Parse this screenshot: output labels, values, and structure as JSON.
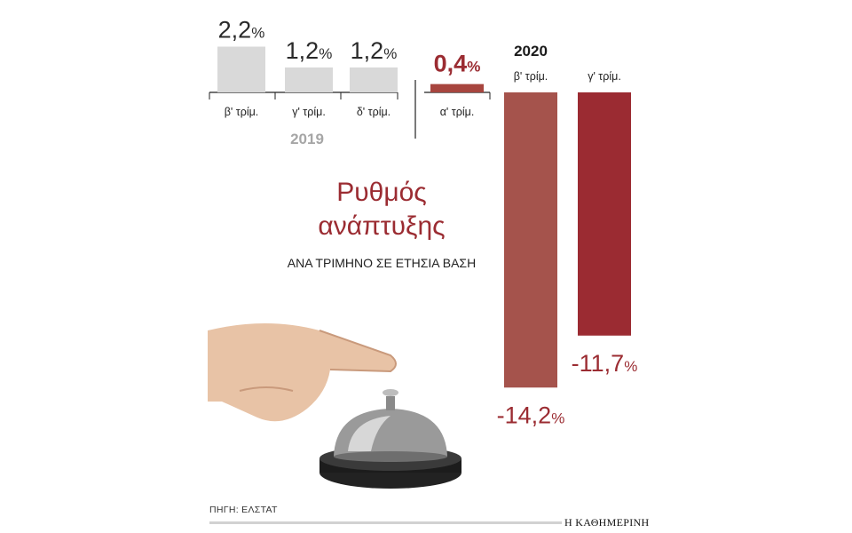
{
  "chart_data": {
    "type": "bar",
    "title": "Ρυθμός ανάπτυξης",
    "subtitle": "ΑΝΑ ΤΡΙΜΗΝΟ ΣΕ ΕΤΗΣΙΑ ΒΑΣΗ",
    "unit": "%",
    "groups": [
      {
        "year": "2019",
        "color": "#d9d9d9",
        "label_color": "#2a2a2a",
        "quarters": [
          {
            "label": "β' τρίμ.",
            "value": 2.2,
            "display": "2,2"
          },
          {
            "label": "γ' τρίμ.",
            "value": 1.2,
            "display": "1,2"
          },
          {
            "label": "δ' τρίμ.",
            "value": 1.2,
            "display": "1,2"
          }
        ]
      },
      {
        "year": "2020",
        "color": "#a7453e",
        "label_color": "#9b2c32",
        "quarters": [
          {
            "label": "α' τρίμ.",
            "value": 0.4,
            "display": "0,4",
            "color": "#a7453e"
          },
          {
            "label": "β' τρίμ.",
            "value": -14.2,
            "display": "-14,2",
            "color": "#a5534c"
          },
          {
            "label": "γ' τρίμ.",
            "value": -11.7,
            "display": "-11,7",
            "color": "#9b2b32"
          }
        ]
      }
    ],
    "ylim": [
      -14.2,
      2.2
    ]
  },
  "source": "ΠΗΓΗ: ΕΛΣΤΑΤ",
  "brand": "Η ΚΑΘΗΜΕΡΙΝΗ",
  "colors": {
    "title": "#9b2c32",
    "bar_2019": "#d9d9d9",
    "year_2019": "#a6a6a6"
  }
}
